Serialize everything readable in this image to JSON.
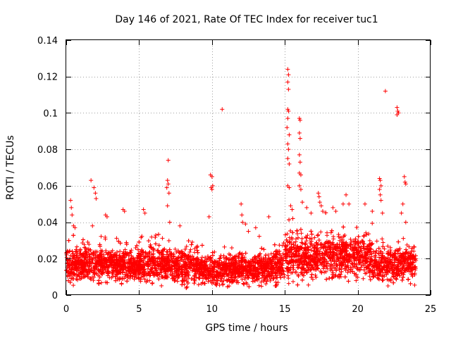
{
  "chart_data": {
    "type": "scatter",
    "title": "Day 146 of 2021, Rate Of TEC Index for receiver tuc1",
    "xlabel": "GPS time / hours",
    "ylabel": "ROTI / TECUs",
    "xlim": [
      0,
      25
    ],
    "ylim": [
      0,
      0.14
    ],
    "grid": true,
    "marker": "+",
    "series_color": "#ff0000",
    "x_ticks": [
      "0",
      "5",
      "10",
      "15",
      "20",
      "25"
    ],
    "y_ticks": [
      "0",
      "0.02",
      "0.04",
      "0.06",
      "0.08",
      "0.1",
      "0.12",
      "0.14"
    ],
    "x_tick_values": [
      0,
      5,
      10,
      15,
      20,
      25
    ],
    "y_tick_values": [
      0,
      0.02,
      0.04,
      0.06,
      0.08,
      0.1,
      0.12,
      0.14
    ],
    "data_range_hours": [
      0,
      24
    ],
    "dense_band": {
      "y_min": 0.003,
      "y_max": 0.03,
      "typical": 0.015
    },
    "series": [
      {
        "name": "tuc1",
        "points": [
          [
            0.3,
            0.052
          ],
          [
            0.35,
            0.048
          ],
          [
            0.4,
            0.044
          ],
          [
            0.5,
            0.038
          ],
          [
            0.6,
            0.037
          ],
          [
            1.7,
            0.063
          ],
          [
            1.9,
            0.059
          ],
          [
            2.0,
            0.056
          ],
          [
            2.05,
            0.053
          ],
          [
            1.8,
            0.038
          ],
          [
            2.7,
            0.044
          ],
          [
            2.8,
            0.043
          ],
          [
            3.9,
            0.047
          ],
          [
            4.0,
            0.046
          ],
          [
            5.3,
            0.047
          ],
          [
            5.4,
            0.045
          ],
          [
            7.0,
            0.074
          ],
          [
            6.95,
            0.063
          ],
          [
            7.0,
            0.061
          ],
          [
            6.9,
            0.059
          ],
          [
            7.05,
            0.056
          ],
          [
            6.95,
            0.049
          ],
          [
            7.1,
            0.04
          ],
          [
            7.8,
            0.038
          ],
          [
            9.8,
            0.043
          ],
          [
            9.9,
            0.066
          ],
          [
            10.0,
            0.065
          ],
          [
            10.05,
            0.06
          ],
          [
            9.95,
            0.059
          ],
          [
            10.0,
            0.058
          ],
          [
            10.7,
            0.102
          ],
          [
            12.0,
            0.05
          ],
          [
            12.05,
            0.044
          ],
          [
            12.1,
            0.04
          ],
          [
            12.3,
            0.039
          ],
          [
            12.5,
            0.035
          ],
          [
            13.0,
            0.037
          ],
          [
            13.9,
            0.043
          ],
          [
            15.2,
            0.124
          ],
          [
            15.25,
            0.121
          ],
          [
            15.2,
            0.117
          ],
          [
            15.25,
            0.113
          ],
          [
            15.2,
            0.102
          ],
          [
            15.25,
            0.101
          ],
          [
            15.2,
            0.097
          ],
          [
            15.15,
            0.092
          ],
          [
            15.3,
            0.088
          ],
          [
            15.2,
            0.083
          ],
          [
            15.25,
            0.08
          ],
          [
            15.2,
            0.075
          ],
          [
            15.3,
            0.072
          ],
          [
            15.2,
            0.06
          ],
          [
            15.3,
            0.059
          ],
          [
            15.4,
            0.049
          ],
          [
            15.5,
            0.047
          ],
          [
            16.0,
            0.097
          ],
          [
            16.05,
            0.096
          ],
          [
            16.0,
            0.089
          ],
          [
            16.05,
            0.086
          ],
          [
            16.0,
            0.077
          ],
          [
            16.05,
            0.073
          ],
          [
            16.0,
            0.067
          ],
          [
            16.1,
            0.066
          ],
          [
            16.0,
            0.06
          ],
          [
            16.1,
            0.058
          ],
          [
            16.2,
            0.051
          ],
          [
            16.5,
            0.048
          ],
          [
            16.8,
            0.045
          ],
          [
            17.3,
            0.056
          ],
          [
            17.35,
            0.054
          ],
          [
            17.4,
            0.051
          ],
          [
            17.5,
            0.049
          ],
          [
            17.6,
            0.046
          ],
          [
            18.3,
            0.048
          ],
          [
            18.5,
            0.046
          ],
          [
            19.0,
            0.05
          ],
          [
            19.2,
            0.055
          ],
          [
            19.4,
            0.05
          ],
          [
            20.5,
            0.05
          ],
          [
            21.0,
            0.046
          ],
          [
            21.5,
            0.064
          ],
          [
            21.55,
            0.063
          ],
          [
            21.6,
            0.06
          ],
          [
            21.5,
            0.058
          ],
          [
            21.55,
            0.055
          ],
          [
            21.6,
            0.052
          ],
          [
            21.7,
            0.045
          ],
          [
            21.9,
            0.112
          ],
          [
            22.7,
            0.103
          ],
          [
            22.75,
            0.101
          ],
          [
            22.8,
            0.1
          ],
          [
            22.7,
            0.099
          ],
          [
            23.2,
            0.065
          ],
          [
            23.25,
            0.062
          ],
          [
            23.3,
            0.061
          ],
          [
            23.1,
            0.05
          ],
          [
            23.0,
            0.045
          ],
          [
            23.3,
            0.04
          ]
        ]
      }
    ]
  }
}
